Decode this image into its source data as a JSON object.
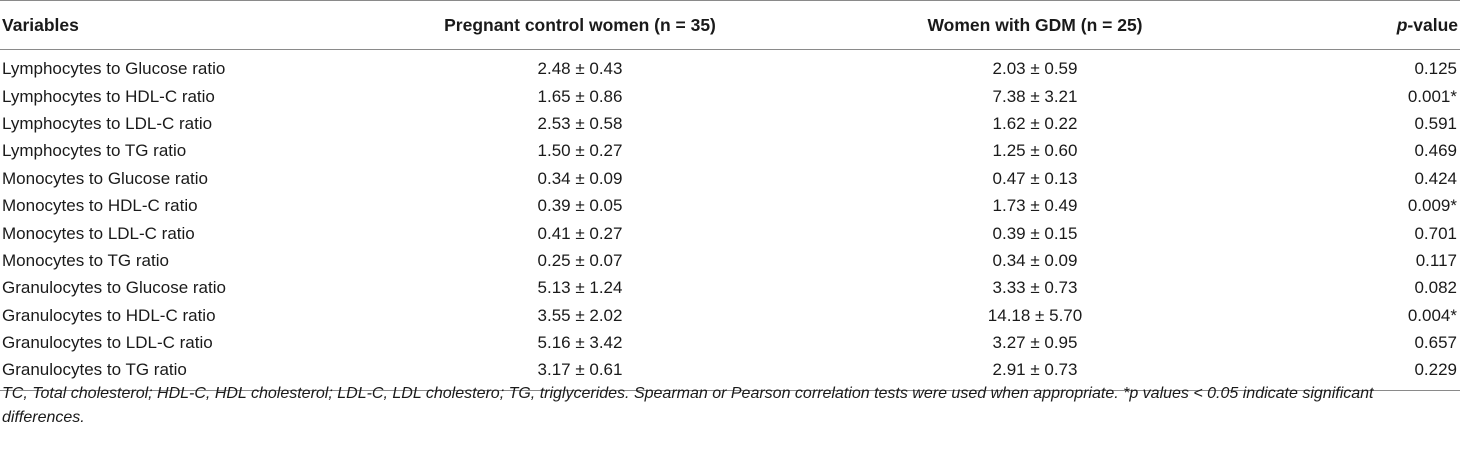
{
  "table": {
    "headers": {
      "variables": "Variables",
      "control": "Pregnant control women (n = 35)",
      "gdm": "Women with GDM (n = 25)",
      "pvalue_italic": "p",
      "pvalue_rest": "-value"
    },
    "rows": [
      {
        "variable": "Lymphocytes to Glucose ratio",
        "control": "2.48 ± 0.43",
        "gdm": "2.03 ± 0.59",
        "p": "0.125"
      },
      {
        "variable": "Lymphocytes to HDL-C ratio",
        "control": "1.65 ± 0.86",
        "gdm": "7.38 ± 3.21",
        "p": "0.001*"
      },
      {
        "variable": "Lymphocytes to LDL-C ratio",
        "control": "2.53 ± 0.58",
        "gdm": "1.62 ± 0.22",
        "p": "0.591"
      },
      {
        "variable": "Lymphocytes to TG ratio",
        "control": "1.50 ± 0.27",
        "gdm": "1.25 ± 0.60",
        "p": "0.469"
      },
      {
        "variable": "Monocytes to Glucose ratio",
        "control": "0.34 ± 0.09",
        "gdm": "0.47 ± 0.13",
        "p": "0.424"
      },
      {
        "variable": "Monocytes to HDL-C ratio",
        "control": "0.39 ± 0.05",
        "gdm": "1.73 ± 0.49",
        "p": "0.009*"
      },
      {
        "variable": "Monocytes to LDL-C ratio",
        "control": "0.41 ± 0.27",
        "gdm": "0.39 ± 0.15",
        "p": "0.701"
      },
      {
        "variable": "Monocytes to TG ratio",
        "control": "0.25 ± 0.07",
        "gdm": "0.34 ± 0.09",
        "p": "0.117"
      },
      {
        "variable": "Granulocytes to Glucose ratio",
        "control": "5.13 ± 1.24",
        "gdm": "3.33 ± 0.73",
        "p": "0.082"
      },
      {
        "variable": "Granulocytes to HDL-C ratio",
        "control": "3.55 ± 2.02",
        "gdm": "14.18 ± 5.70",
        "p": "0.004*"
      },
      {
        "variable": "Granulocytes to LDL-C ratio",
        "control": "5.16 ± 3.42",
        "gdm": "3.27 ± 0.95",
        "p": "0.657"
      },
      {
        "variable": "Granulocytes to TG ratio",
        "control": "3.17 ± 0.61",
        "gdm": "2.91 ± 0.73",
        "p": "0.229"
      }
    ]
  },
  "footnote": "TC, Total cholesterol; HDL-C, HDL cholesterol; LDL-C, LDL cholestero; TG, triglycerides. Spearman or Pearson correlation tests were used when appropriate. *p values < 0.05 indicate significant differences."
}
